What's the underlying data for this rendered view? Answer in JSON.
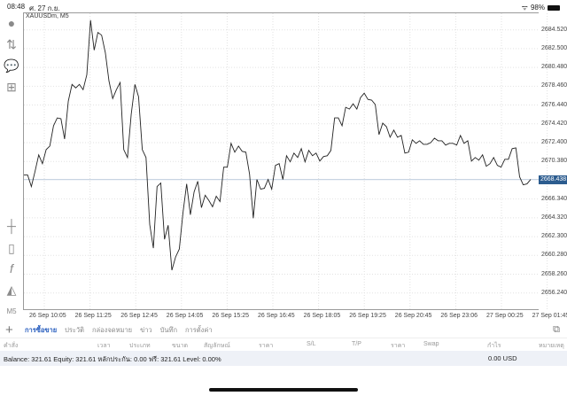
{
  "status": {
    "time": "08:48",
    "date": "ศ. 27 ก.ย.",
    "battery": "98%"
  },
  "toolbar": {
    "icons": [
      "account-icon",
      "trade-arrows-icon",
      "chat-icon",
      "new-document-icon",
      "crosshair-icon",
      "candlestick-icon",
      "function-icon",
      "objects-icon"
    ],
    "timeframe": "M5"
  },
  "chart_data": {
    "type": "line",
    "title": "XAUUSDm, M5",
    "current_price": "2668.438",
    "ylim": [
      2654.5,
      2686.3
    ],
    "y_ticks": [
      "2684.520",
      "2682.500",
      "2680.480",
      "2678.460",
      "2676.440",
      "2674.420",
      "2672.400",
      "2670.380",
      "2666.340",
      "2664.320",
      "2662.300",
      "2660.280",
      "2658.260",
      "2656.240"
    ],
    "x_ticks": [
      "26 Sep 10:05",
      "26 Sep 11:25",
      "26 Sep 12:45",
      "26 Sep 14:05",
      "26 Sep 15:25",
      "26 Sep 16:45",
      "26 Sep 18:05",
      "26 Sep 19:25",
      "26 Sep 20:45",
      "26 Sep 23:06",
      "27 Sep 00:25",
      "27 Sep 01:45"
    ],
    "grid": true,
    "values": [
      2668.91,
      2668.91,
      2667.68,
      2669.29,
      2671.09,
      2670.14,
      2671.65,
      2672.03,
      2674.21,
      2675.06,
      2674.97,
      2672.79,
      2676.86,
      2678.65,
      2678.28,
      2678.65,
      2678.09,
      2679.7,
      2685.56,
      2682.34,
      2684.24,
      2683.95,
      2682.06,
      2679.03,
      2677.14,
      2678.09,
      2678.85,
      2671.65,
      2670.8,
      2675.44,
      2678.65,
      2677.33,
      2671.65,
      2670.8,
      2663.61,
      2661.06,
      2667.68,
      2668.06,
      2662.01,
      2663.52,
      2658.69,
      2660.11,
      2660.96,
      2664.84,
      2667.96,
      2664.65,
      2667.11,
      2668.25,
      2665.41,
      2666.74,
      2666.17,
      2665.51,
      2666.64,
      2666.07,
      2669.76,
      2669.76,
      2672.32,
      2671.37,
      2672.03,
      2671.47,
      2671.37,
      2669.01,
      2664.28,
      2668.44,
      2667.4,
      2667.49,
      2668.44,
      2667.4,
      2669.95,
      2670.14,
      2668.44,
      2670.99,
      2670.33,
      2671.28,
      2670.8,
      2671.75,
      2670.33,
      2671.56,
      2670.99,
      2671.28,
      2670.42,
      2670.9,
      2670.99,
      2671.56,
      2675.06,
      2675.06,
      2674.21,
      2676.2,
      2676.01,
      2676.57,
      2676.01,
      2677.24,
      2677.71,
      2677.05,
      2676.97,
      2676.48,
      2673.26,
      2674.49,
      2674.11,
      2672.98,
      2673.74,
      2672.98,
      2673.17,
      2671.28,
      2671.37,
      2672.7,
      2672.32,
      2672.6,
      2672.22,
      2672.22,
      2672.41,
      2672.88,
      2672.6,
      2672.6,
      2672.13,
      2672.32,
      2672.32,
      2672.13,
      2673.17,
      2672.32,
      2672.6,
      2670.42,
      2670.8,
      2670.52,
      2671.09,
      2669.86,
      2670.14,
      2670.8,
      2669.95,
      2669.76,
      2670.61,
      2670.61,
      2671.75,
      2671.84,
      2668.72,
      2667.87,
      2667.96,
      2668.44
    ],
    "line_color": "#222222",
    "current_line_color": "#c8d4e2"
  },
  "tabs": {
    "items": [
      "การซื้อขาย",
      "ประวัติ",
      "กล่องจดหมาย",
      "ข่าว",
      "บันทึก",
      "การตั้งค่า"
    ]
  },
  "columns": [
    "คำสั่ง",
    "เวลา",
    "ประเภท",
    "ขนาด",
    "สัญลักษณ์",
    "ราคา",
    "S/L",
    "T/P",
    "ราคา",
    "Swap",
    "กำไร",
    "หมายเหตุ"
  ],
  "balance": {
    "text": "Balance: 321.61 Equity: 321.61 หลักประกัน: 0.00 ฟรี: 321.61 Level: 0.00%",
    "profit": "0.00  USD"
  }
}
